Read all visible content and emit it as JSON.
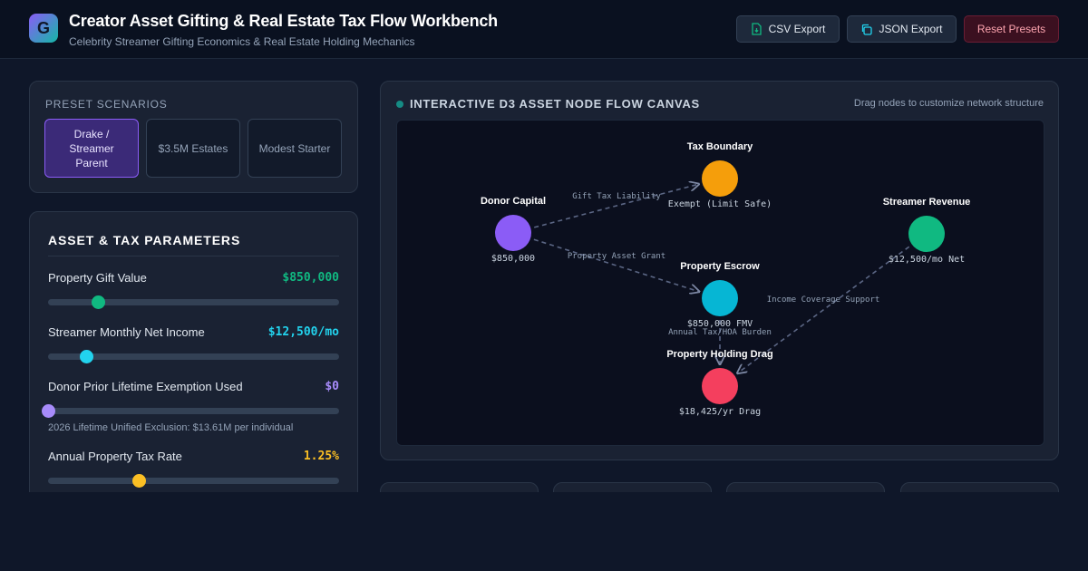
{
  "header": {
    "logo_letter": "G",
    "title": "Creator Asset Gifting & Real Estate Tax Flow Workbench",
    "subtitle": "Celebrity Streamer Gifting Economics & Real Estate Holding Mechanics",
    "buttons": {
      "csv_label": "CSV Export",
      "json_label": "JSON Export",
      "reset_label": "Reset Presets"
    }
  },
  "presets": {
    "label": "Preset Scenarios",
    "items": [
      {
        "label": "Drake / Streamer Parent",
        "active": true
      },
      {
        "label": "$3.5M Estates",
        "active": false
      },
      {
        "label": "Modest Starter",
        "active": false
      }
    ]
  },
  "params": {
    "title": "Asset & Tax Parameters",
    "items": [
      {
        "label": "Property Gift Value",
        "value": "$850,000",
        "color": "#10b981",
        "level": 0.17
      },
      {
        "label": "Streamer Monthly Net Income",
        "value": "$12,500/mo",
        "color": "#22d3ee",
        "level": 0.13
      },
      {
        "label": "Donor Prior Lifetime Exemption Used",
        "value": "$0",
        "color": "#a78bfa",
        "level": 0.0,
        "note": "2026 Lifetime Unified Exclusion: $13.61M per individual"
      },
      {
        "label": "Annual Property Tax Rate",
        "value": "1.25%",
        "color": "#fbbf24",
        "level": 0.31
      }
    ]
  },
  "canvas": {
    "title": "Interactive D3 Asset Node Flow Canvas",
    "hint": "Drag nodes to customize network structure",
    "nodes": [
      {
        "id": "donor",
        "name": "Donor Capital",
        "value": "$850,000",
        "color": "#8b5cf6"
      },
      {
        "id": "tax",
        "name": "Tax Boundary",
        "value": "Exempt (Limit Safe)",
        "color": "#f59e0b"
      },
      {
        "id": "escrow",
        "name": "Property Escrow",
        "value": "$850,000 FMV",
        "color": "#06b6d4"
      },
      {
        "id": "drag",
        "name": "Property Holding Drag",
        "value": "$18,425/yr Drag",
        "color": "#f43f5e"
      },
      {
        "id": "revenue",
        "name": "Streamer Revenue",
        "value": "$12,500/mo Net",
        "color": "#10b981"
      }
    ],
    "links": [
      {
        "source": "donor",
        "target": "tax",
        "label": "Gift Tax Liability"
      },
      {
        "source": "donor",
        "target": "escrow",
        "label": "Property Asset Grant"
      },
      {
        "source": "escrow",
        "target": "drag",
        "label": "Annual Tax/HOA Burden"
      },
      {
        "source": "revenue",
        "target": "drag",
        "label": "Income Coverage Support"
      }
    ]
  },
  "colors": {
    "accent": "#8b5cf6",
    "background": "#0f1729",
    "card": "#1a2233"
  }
}
